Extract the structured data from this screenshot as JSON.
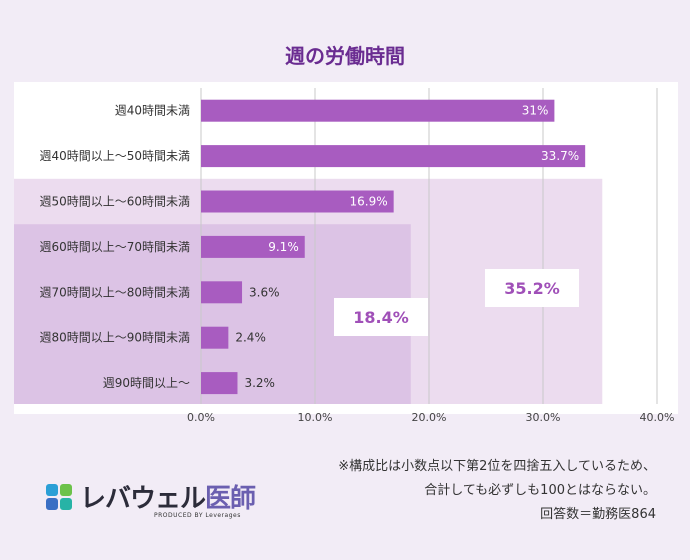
{
  "chart_data": {
    "type": "bar",
    "orientation": "horizontal",
    "title": "週の労働時間",
    "categories": [
      "週40時間未満",
      "週40時間以上〜50時間未満",
      "週50時間以上〜60時間未満",
      "週60時間以上〜70時間未満",
      "週70時間以上〜80時間未満",
      "週80時間以上〜90時間未満",
      "週90時間以上〜"
    ],
    "values": [
      31,
      33.7,
      16.9,
      9.1,
      3.6,
      2.4,
      3.2
    ],
    "value_labels": [
      "31%",
      "33.7%",
      "16.9%",
      "9.1%",
      "3.6%",
      "2.4%",
      "3.2%"
    ],
    "xlim": [
      0,
      40
    ],
    "x_ticks": [
      0,
      10,
      20,
      30,
      40
    ],
    "x_tick_labels": [
      "0.0%",
      "10.0%",
      "20.0%",
      "30.0%",
      "40.0%"
    ],
    "grid": true,
    "bar_color": "#a85cc0",
    "groups": [
      {
        "label": "35.2%",
        "value": 35.2,
        "from_category": 2
      },
      {
        "label": "18.4%",
        "value": 18.4,
        "from_category": 3
      }
    ]
  },
  "notes": {
    "line1": "※構成比は小数点以下第2位を四捨五入しているため、",
    "line2": "合計しても必ずしも100とはならない。",
    "line3": "回答数＝勤務医864"
  },
  "logo": {
    "name_kana": "レバウェル",
    "name_kanji": "医師",
    "sub": "PRODUCED BY Leverages"
  }
}
